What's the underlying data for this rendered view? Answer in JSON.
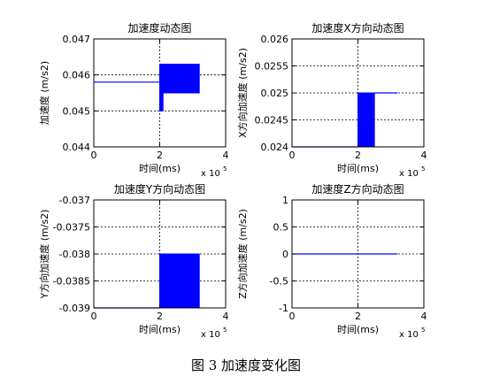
{
  "figure_caption": "图 3  加速度变化图",
  "colors": {
    "series": "#0000ff",
    "axis": "#000000",
    "grid": "#000000"
  },
  "chart_data": [
    {
      "type": "area",
      "title": "加速度动态图",
      "xlabel": "时间(ms)",
      "ylabel": "加速度 (m/s2)",
      "x_exponent": "x 10",
      "x_exponent_power": "5",
      "xlim": [
        0,
        4
      ],
      "ylim": [
        0.044,
        0.047
      ],
      "xticks": [
        "0",
        "2",
        "4"
      ],
      "yticks": [
        "0.044",
        "0.045",
        "0.046",
        "0.047"
      ],
      "grid": true,
      "series": [
        {
          "kind": "line",
          "x": [
            0,
            2
          ],
          "y": [
            0.0458,
            0.0458
          ]
        },
        {
          "kind": "band",
          "x": [
            2,
            2.1,
            2.1,
            2.3,
            2.3,
            3.2
          ],
          "low": [
            0.045,
            0.045,
            0.0455,
            0.0455,
            0.0455,
            0.0455
          ],
          "high": [
            0.0463,
            0.0463,
            0.0463,
            0.0463,
            0.0463,
            0.0463
          ]
        }
      ]
    },
    {
      "type": "area",
      "title": "加速度X方向动态图",
      "xlabel": "时间(ms)",
      "ylabel": "X方向加速度 (m/s2)",
      "x_exponent": "x 10",
      "x_exponent_power": "5",
      "xlim": [
        0,
        4
      ],
      "ylim": [
        0.024,
        0.026
      ],
      "xticks": [
        "0",
        "2",
        "4"
      ],
      "yticks": [
        "0.024",
        "0.0245",
        "0.025",
        "0.0255",
        "0.026"
      ],
      "grid": true,
      "series": [
        {
          "kind": "line",
          "x": [
            0,
            2
          ],
          "y": [
            0.024,
            0.024
          ]
        },
        {
          "kind": "band",
          "x": [
            2,
            2.5
          ],
          "low": [
            0.024,
            0.024
          ],
          "high": [
            0.025,
            0.025
          ]
        },
        {
          "kind": "line",
          "x": [
            2.5,
            3.2
          ],
          "y": [
            0.025,
            0.025
          ]
        }
      ]
    },
    {
      "type": "area",
      "title": "加速度Y方向动态图",
      "xlabel": "时间(ms)",
      "ylabel": "Y方向加速度 (m/s2)",
      "x_exponent": "x 10",
      "x_exponent_power": "5",
      "xlim": [
        0,
        4
      ],
      "ylim": [
        -0.039,
        -0.037
      ],
      "xticks": [
        "0",
        "2",
        "4"
      ],
      "yticks": [
        "-0.039",
        "-0.0385",
        "-0.038",
        "-0.0375",
        "-0.037"
      ],
      "grid": true,
      "series": [
        {
          "kind": "line",
          "x": [
            0,
            2
          ],
          "y": [
            -0.039,
            -0.039
          ]
        },
        {
          "kind": "band",
          "x": [
            2,
            3.2
          ],
          "low": [
            -0.039,
            -0.039
          ],
          "high": [
            -0.038,
            -0.038
          ]
        }
      ]
    },
    {
      "type": "line",
      "title": "加速度Z方向动态图",
      "xlabel": "时间(ms)",
      "ylabel": "Z方向加速度 (m/s2)",
      "x_exponent": "x 10",
      "x_exponent_power": "5",
      "xlim": [
        0,
        4
      ],
      "ylim": [
        -1,
        1
      ],
      "xticks": [
        "0",
        "2",
        "4"
      ],
      "yticks": [
        "-1",
        "-0.5",
        "0",
        "0.5",
        "1"
      ],
      "grid": true,
      "series": [
        {
          "kind": "line",
          "x": [
            0,
            3.2
          ],
          "y": [
            0,
            0
          ]
        }
      ]
    }
  ]
}
